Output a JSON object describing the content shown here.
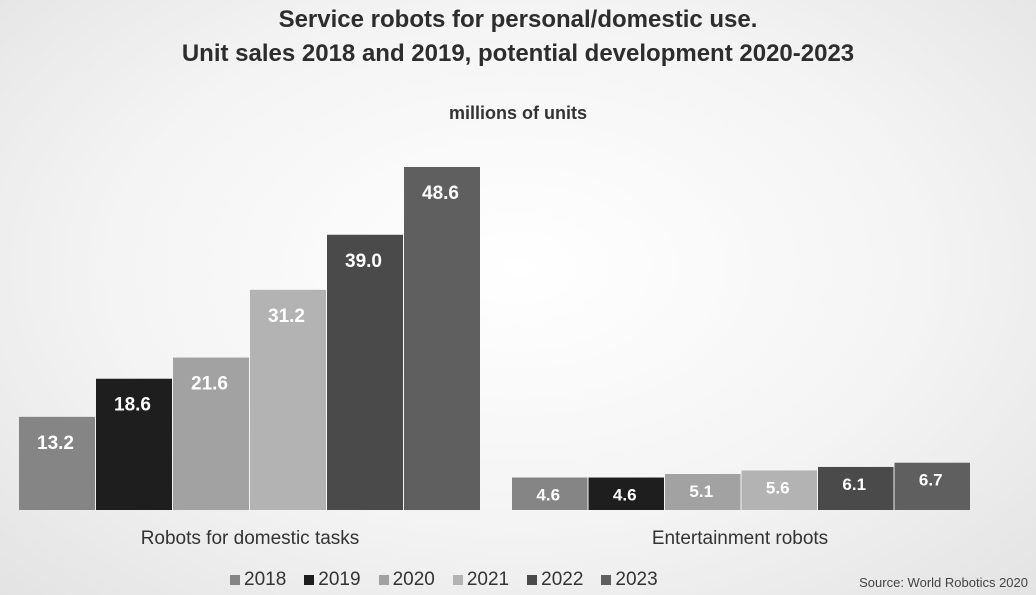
{
  "chart_data": {
    "type": "bar",
    "title": "Service robots for personal/domestic use.",
    "subtitle": "Unit sales 2018 and 2019, potential development 2020-2023",
    "unit_label": "millions of units",
    "categories": [
      "Robots for domestic tasks",
      "Entertainment robots"
    ],
    "series": [
      {
        "name": "2018",
        "color": "#858585",
        "values": [
          13.2,
          4.6
        ]
      },
      {
        "name": "2019",
        "color": "#1e1e1e",
        "values": [
          18.6,
          4.6
        ]
      },
      {
        "name": "2020",
        "color": "#a2a2a2",
        "values": [
          21.6,
          5.1
        ]
      },
      {
        "name": "2021",
        "color": "#b3b3b3",
        "values": [
          31.2,
          5.6
        ]
      },
      {
        "name": "2022",
        "color": "#4a4a4a",
        "values": [
          39.0,
          6.1
        ]
      },
      {
        "name": "2023",
        "color": "#5f5f5f",
        "values": [
          48.6,
          6.7
        ]
      }
    ],
    "data_labels": [
      [
        "13.2",
        "4.6"
      ],
      [
        "18.6",
        "4.6"
      ],
      [
        "21.6",
        "5.1"
      ],
      [
        "31.2",
        "5.6"
      ],
      [
        "39.0",
        "6.1"
      ],
      [
        "48.6",
        "6.7"
      ]
    ],
    "ylim": [
      0,
      50
    ],
    "grid": false,
    "legend_position": "bottom",
    "source": "Source: World Robotics 2020"
  }
}
